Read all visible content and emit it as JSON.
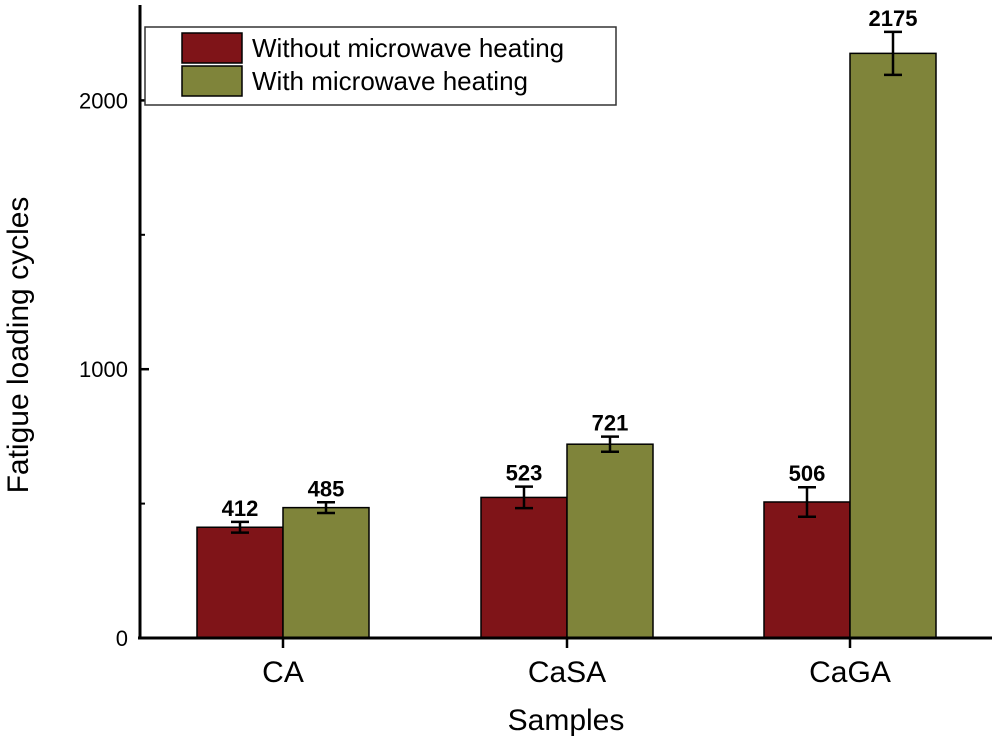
{
  "chart_data": {
    "type": "bar",
    "title": "",
    "xlabel": "Samples",
    "ylabel": "Fatigue loading cycles",
    "categories": [
      "CA",
      "CaSA",
      "CaGA"
    ],
    "ylim": [
      0,
      2300
    ],
    "yticks": [
      0,
      1000,
      2000
    ],
    "minor_yticks": [
      500,
      1500
    ],
    "grid": false,
    "legend_position": "top-left",
    "series": [
      {
        "name": "Without microwave heating",
        "color": "#7f1418",
        "values": [
          412,
          523,
          506
        ],
        "errors": [
          20,
          40,
          55
        ],
        "labels": [
          "412",
          "523",
          "506"
        ]
      },
      {
        "name": "With microwave heating",
        "color": "#7f843a",
        "values": [
          485,
          721,
          2175
        ],
        "errors": [
          20,
          28,
          80
        ],
        "labels": [
          "485",
          "721",
          "2175"
        ]
      }
    ]
  }
}
